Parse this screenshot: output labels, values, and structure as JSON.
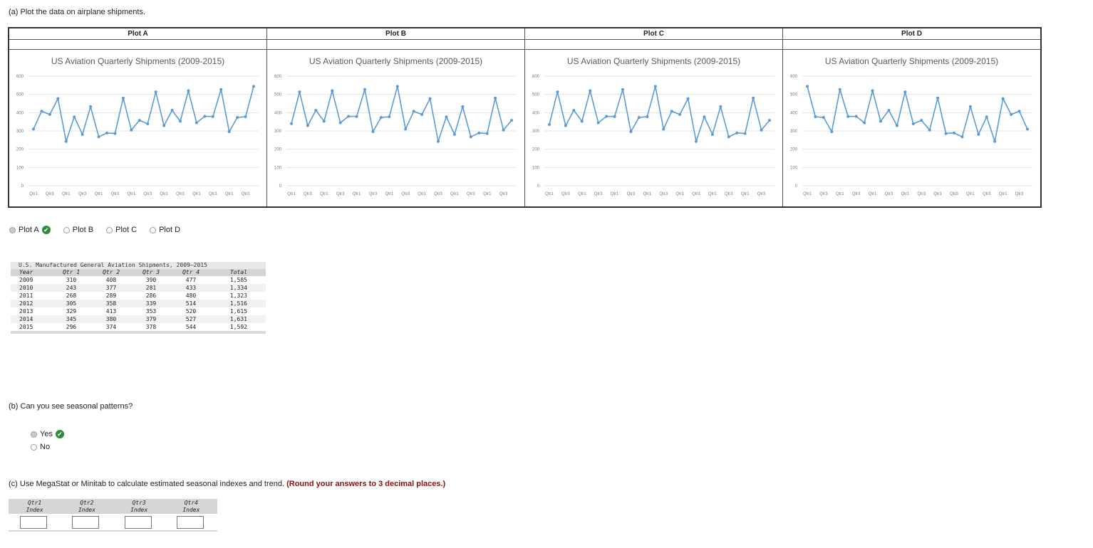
{
  "part_a": {
    "label": "(a) Plot the data on airplane shipments."
  },
  "plots": [
    {
      "header": "Plot A",
      "title": "US Aviation Quarterly Shipments (2009-2015)",
      "values": [
        310,
        408,
        390,
        477,
        243,
        377,
        281,
        433,
        268,
        289,
        286,
        480,
        305,
        358,
        339,
        514,
        329,
        413,
        353,
        520,
        345,
        380,
        379,
        527,
        296,
        374,
        378,
        544
      ]
    },
    {
      "header": "Plot B",
      "title": "US Aviation Quarterly Shipments (2009-2015)",
      "values": [
        340,
        514,
        329,
        413,
        353,
        520,
        345,
        380,
        379,
        527,
        296,
        374,
        378,
        544,
        310,
        408,
        390,
        477,
        243,
        377,
        281,
        433,
        268,
        289,
        286,
        480,
        305,
        358
      ]
    },
    {
      "header": "Plot C",
      "title": "US Aviation Quarterly Shipments (2009-2015)",
      "values": [
        335,
        514,
        329,
        413,
        353,
        520,
        345,
        380,
        379,
        527,
        296,
        374,
        378,
        544,
        310,
        408,
        390,
        477,
        243,
        377,
        281,
        433,
        268,
        289,
        286,
        480,
        305,
        358
      ]
    },
    {
      "header": "Plot D",
      "title": "US Aviation Quarterly Shipments (2009-2015)",
      "values": [
        544,
        378,
        374,
        296,
        527,
        379,
        380,
        345,
        520,
        353,
        413,
        329,
        514,
        339,
        358,
        305,
        480,
        286,
        289,
        268,
        433,
        281,
        377,
        243,
        477,
        390,
        408,
        310
      ]
    }
  ],
  "chart_axis": {
    "y_ticks": [
      "600",
      "500",
      "400",
      "300",
      "200",
      "100",
      "0"
    ],
    "ylim": [
      0,
      600
    ],
    "x_labels": [
      "Qtr1",
      "Qtr3",
      "Qtr1",
      "Qtr3",
      "Qtr1",
      "Qtr3",
      "Qtr1",
      "Qtr3",
      "Qtr1",
      "Qtr3",
      "Qtr1",
      "Qtr3",
      "Qtr1",
      "Qtr3"
    ],
    "line_color": "#5b9bd5",
    "grid_color": "#e3e3e3"
  },
  "plot_options": {
    "items": [
      {
        "label": "Plot A",
        "selected": true,
        "correct": true
      },
      {
        "label": "Plot B",
        "selected": false
      },
      {
        "label": "Plot C",
        "selected": false
      },
      {
        "label": "Plot D",
        "selected": false
      }
    ]
  },
  "data_table": {
    "caption": "U.S. Manufactured General Aviation Shipments, 2009–2015",
    "headers": [
      "Year",
      "Qtr 1",
      "Qtr 2",
      "Qtr 3",
      "Qtr 4",
      "Total"
    ],
    "rows": [
      [
        "2009",
        "310",
        "408",
        "390",
        "477",
        "1,585"
      ],
      [
        "2010",
        "243",
        "377",
        "281",
        "433",
        "1,334"
      ],
      [
        "2011",
        "268",
        "289",
        "286",
        "480",
        "1,323"
      ],
      [
        "2012",
        "305",
        "358",
        "339",
        "514",
        "1,516"
      ],
      [
        "2013",
        "329",
        "413",
        "353",
        "520",
        "1,615"
      ],
      [
        "2014",
        "345",
        "380",
        "379",
        "527",
        "1,631"
      ],
      [
        "2015",
        "296",
        "374",
        "378",
        "544",
        "1,592"
      ]
    ]
  },
  "part_b": {
    "label": "(b) Can you see seasonal patterns?",
    "options": [
      {
        "label": "Yes",
        "selected": true,
        "correct": true
      },
      {
        "label": "No",
        "selected": false
      }
    ]
  },
  "part_c": {
    "label": "(c) Use MegaStat or Minitab to calculate estimated seasonal indexes and trend.",
    "note": "(Round your answers to 3 decimal places.)",
    "headers": [
      {
        "line1": "Qtr1",
        "line2": "Index"
      },
      {
        "line1": "Qtr2",
        "line2": "Index"
      },
      {
        "line1": "Qtr3",
        "line2": "Index"
      },
      {
        "line1": "Qtr4",
        "line2": "Index"
      }
    ],
    "inputs": [
      "",
      "",
      "",
      ""
    ]
  }
}
